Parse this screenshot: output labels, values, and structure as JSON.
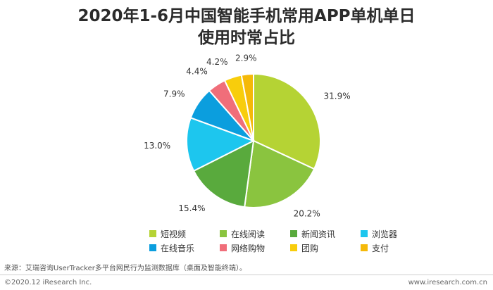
{
  "chart_data": {
    "type": "pie",
    "title_lines": [
      "2020年1-6月中国智能手机常用APP单机单日",
      "使用时常占比"
    ],
    "slices": [
      {
        "label": "短视频",
        "value": 31.9,
        "display": "31.9%",
        "color": "#b5d334"
      },
      {
        "label": "在线阅读",
        "value": 20.2,
        "display": "20.2%",
        "color": "#8ac43f"
      },
      {
        "label": "新闻资讯",
        "value": 15.4,
        "display": "15.4%",
        "color": "#59aa3d"
      },
      {
        "label": "浏览器",
        "value": 13.0,
        "display": "13.0%",
        "color": "#1dc6ee"
      },
      {
        "label": "在线音乐",
        "value": 7.9,
        "display": "7.9%",
        "color": "#0b9ede"
      },
      {
        "label": "网络购物",
        "value": 4.4,
        "display": "4.4%",
        "color": "#f06e7a"
      },
      {
        "label": "团购",
        "value": 4.2,
        "display": "4.2%",
        "color": "#f8cd0c"
      },
      {
        "label": "支付",
        "value": 2.9,
        "display": "2.9%",
        "color": "#f5b909"
      }
    ],
    "legend_placement": "bottom"
  },
  "footer": {
    "source": "来源：艾瑞咨询UserTracker多平台网民行为监测数据库（桌面及智能终端）。",
    "copyright": "©2020.12 iResearch Inc.",
    "website": "www.iresearch.com.cn"
  }
}
